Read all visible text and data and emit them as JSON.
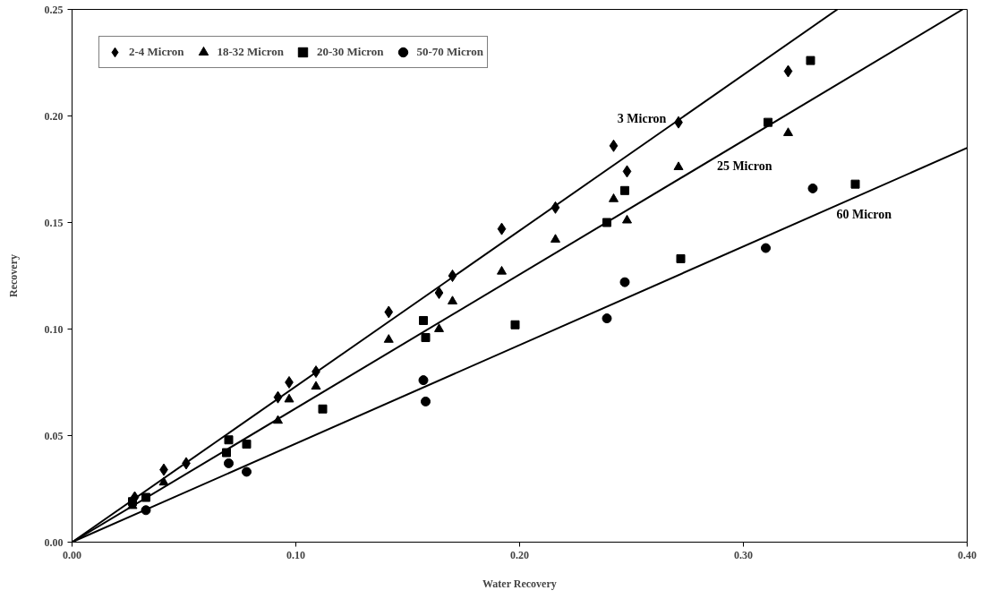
{
  "chart_data": {
    "type": "scatter",
    "xlabel": "Water Recovery",
    "ylabel": "Recovery",
    "xlim": [
      0,
      0.4
    ],
    "ylim": [
      0,
      0.25
    ],
    "xticks": [
      {
        "value": 0,
        "label": "0.00"
      },
      {
        "value": 0.1,
        "label": "0.10"
      },
      {
        "value": 0.2,
        "label": "0.20"
      },
      {
        "value": 0.3,
        "label": "0.30"
      },
      {
        "value": 0.4,
        "label": "0.40"
      }
    ],
    "yticks": [
      {
        "value": 0,
        "label": "0.00"
      },
      {
        "value": 0.05,
        "label": "0.05"
      },
      {
        "value": 0.1,
        "label": "0.10"
      },
      {
        "value": 0.15,
        "label": "0.15"
      },
      {
        "value": 0.2,
        "label": "0.20"
      },
      {
        "value": 0.25,
        "label": "0.25"
      }
    ],
    "grid": false,
    "legend": "top left",
    "series": [
      {
        "name": "2-4 Micron",
        "color": "#000000",
        "marker": "diamond",
        "x": [
          0.028,
          0.041,
          0.051,
          0.092,
          0.097,
          0.109,
          0.1415,
          0.164,
          0.17,
          0.192,
          0.216,
          0.242,
          0.248,
          0.271,
          0.32
        ],
        "values": [
          0.021,
          0.034,
          0.037,
          0.068,
          0.075,
          0.08,
          0.108,
          0.117,
          0.125,
          0.147,
          0.157,
          0.186,
          0.174,
          0.197,
          0.221
        ]
      },
      {
        "name": "18-32 Micron",
        "color": "#000000",
        "marker": "triangle",
        "x": [
          0.027,
          0.041,
          0.092,
          0.097,
          0.109,
          0.1415,
          0.164,
          0.17,
          0.192,
          0.216,
          0.242,
          0.248,
          0.271,
          0.32
        ],
        "values": [
          0.017,
          0.028,
          0.057,
          0.067,
          0.073,
          0.095,
          0.1,
          0.113,
          0.127,
          0.142,
          0.161,
          0.151,
          0.176,
          0.192
        ]
      },
      {
        "name": "20-30 Micron",
        "color": "#000000",
        "marker": "square",
        "x": [
          0.027,
          0.033,
          0.069,
          0.07,
          0.078,
          0.112,
          0.157,
          0.158,
          0.198,
          0.239,
          0.247,
          0.272,
          0.311,
          0.33,
          0.35
        ],
        "values": [
          0.019,
          0.021,
          0.042,
          0.048,
          0.046,
          0.0625,
          0.104,
          0.096,
          0.102,
          0.15,
          0.165,
          0.133,
          0.197,
          0.226,
          0.168
        ]
      },
      {
        "name": "50-70 Micron",
        "color": "#000000",
        "marker": "circle",
        "x": [
          0.033,
          0.07,
          0.078,
          0.157,
          0.158,
          0.239,
          0.247,
          0.31,
          0.331
        ],
        "values": [
          0.015,
          0.037,
          0.033,
          0.076,
          0.066,
          0.105,
          0.122,
          0.138,
          0.166
        ]
      },
      {
        "name": "3 Micron",
        "type": "line",
        "color": "#000000",
        "line_style": "solid",
        "x": [
          0,
          0.342
        ],
        "values": [
          0,
          0.25
        ]
      },
      {
        "name": "25 Micron",
        "type": "line",
        "color": "#000000",
        "line_style": "solid",
        "x": [
          0,
          0.398
        ],
        "values": [
          0,
          0.25
        ]
      },
      {
        "name": "60 Micron",
        "type": "line",
        "color": "#000000",
        "line_style": "solid",
        "x": [
          0,
          0.4
        ],
        "values": [
          0,
          0.185
        ]
      }
    ]
  }
}
